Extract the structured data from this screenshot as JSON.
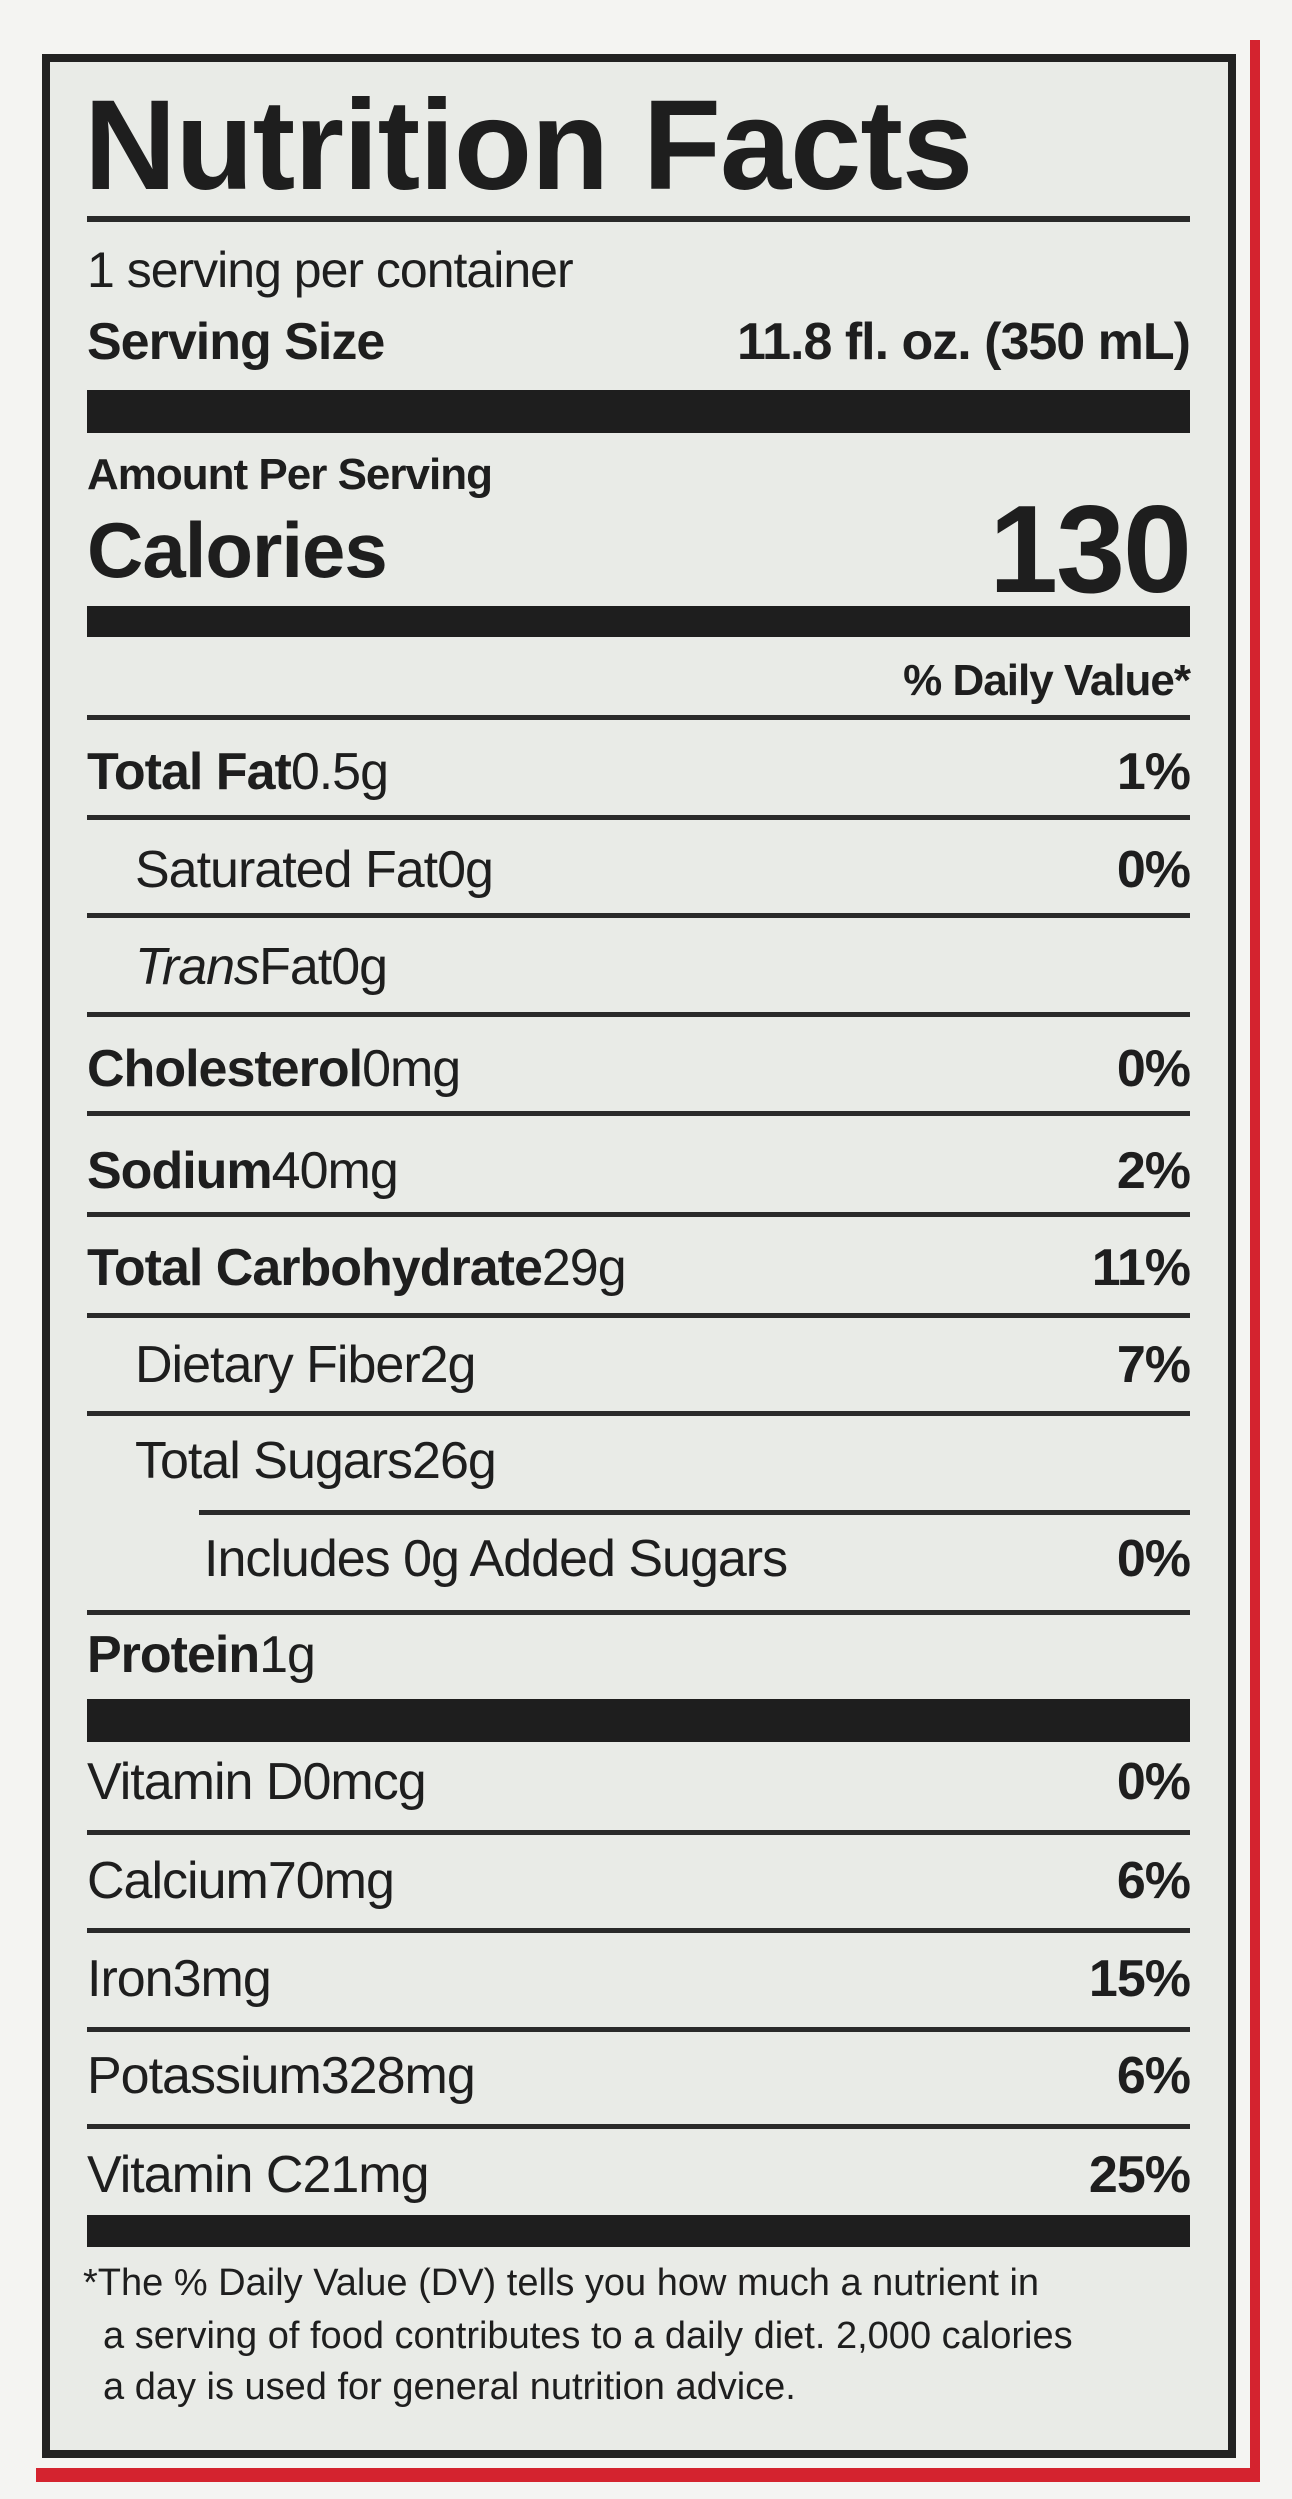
{
  "title": "Nutrition Facts",
  "servings": "1 serving per container",
  "serving_size": {
    "label": "Serving Size",
    "value": "11.8 fl. oz. (350 mL)"
  },
  "amount_per_serving": "Amount Per Serving",
  "calories": {
    "label": "Calories",
    "value": "130"
  },
  "dv_header": "% Daily Value*",
  "nutrients": [
    {
      "name": "Total Fat",
      "amount": "0.5g",
      "dv": "1%"
    },
    {
      "name": "Saturated Fat",
      "amount": "0g",
      "dv": "0%"
    },
    {
      "name_italic": "Trans",
      "name": "Fat",
      "amount": "0g"
    },
    {
      "name": "Cholesterol",
      "amount": "0mg",
      "dv": "0%"
    },
    {
      "name": "Sodium",
      "amount": "40mg",
      "dv": "2%"
    },
    {
      "name": "Total Carbohydrate",
      "amount": "29g",
      "dv": "11%"
    },
    {
      "name": "Dietary Fiber",
      "amount": "2g",
      "dv": "7%"
    },
    {
      "name": "Total Sugars",
      "amount": "26g"
    },
    {
      "name": "Includes 0g Added Sugars",
      "dv": "0%"
    },
    {
      "name": "Protein",
      "amount": "1g"
    }
  ],
  "vitamins": [
    {
      "name": "Vitamin D",
      "amount": "0mcg",
      "dv": "0%"
    },
    {
      "name": "Calcium",
      "amount": "70mg",
      "dv": "6%"
    },
    {
      "name": "Iron",
      "amount": "3mg",
      "dv": "15%"
    },
    {
      "name": "Potassium",
      "amount": "328mg",
      "dv": "6%"
    },
    {
      "name": "Vitamin C",
      "amount": "21mg",
      "dv": "25%"
    }
  ],
  "footnote": [
    "*The % Daily Value (DV) tells you how much a nutrient in",
    "a serving of food contributes to a daily diet. 2,000 calories",
    "a day is used for general nutrition advice."
  ]
}
